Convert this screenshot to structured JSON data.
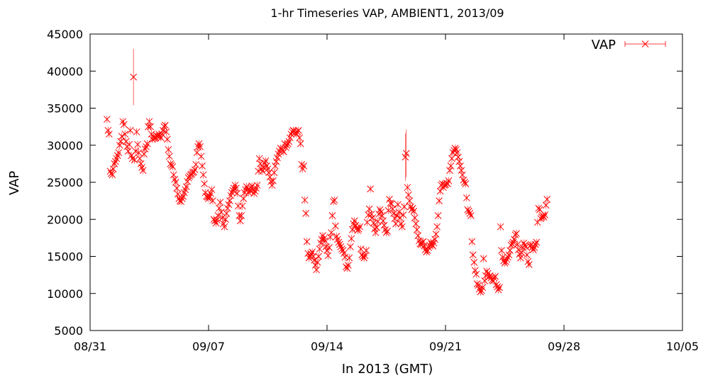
{
  "chart_data": {
    "type": "scatter",
    "title": "1-hr Timeseries VAP, AMBIENT1, 2013/09",
    "xlabel": "In 2013 (GMT)",
    "ylabel": "VAP",
    "xlim": [
      "2013-08-31",
      "2013-10-05"
    ],
    "ylim": [
      5000,
      45000
    ],
    "x_ticks": [
      "08/31",
      "09/07",
      "09/14",
      "09/21",
      "09/28",
      "10/05"
    ],
    "y_ticks": [
      5000,
      10000,
      15000,
      20000,
      25000,
      30000,
      35000,
      40000,
      45000
    ],
    "grid": false,
    "legend_position": "top-right",
    "series": [
      {
        "name": "VAP",
        "color": "#ff0000",
        "marker": "x",
        "error_bars": true,
        "x_start": "2013-09-01",
        "y": [
          33500,
          32000,
          31500,
          26500,
          26200,
          26000,
          26800,
          27500,
          27800,
          28200,
          28600,
          29000,
          30000,
          30500,
          31200,
          33200,
          32800,
          31500,
          30500,
          29800,
          29200,
          30100,
          32000,
          28600,
          28200,
          39200,
          28000,
          29200,
          31800,
          30100,
          29000,
          28200,
          27500,
          27000,
          26600,
          28800,
          29500,
          29800,
          30200,
          32500,
          33200,
          32500,
          31500,
          30800,
          31200,
          30900,
          31000,
          31300,
          31200,
          31500,
          31200,
          31000,
          31500,
          32000,
          32500,
          32700,
          31800,
          30800,
          29400,
          28500,
          27500,
          27300,
          27100,
          26000,
          25400,
          25000,
          24200,
          23400,
          22800,
          22500,
          22400,
          22800,
          23100,
          23600,
          24000,
          24400,
          25100,
          25600,
          25800,
          26000,
          26100,
          26300,
          26400,
          26700,
          27400,
          29000,
          29800,
          30200,
          29800,
          28500,
          27200,
          26000,
          24800,
          23600,
          23100,
          23000,
          22800,
          23100,
          23500,
          24000,
          22500,
          20000,
          19800,
          19500,
          19900,
          20500,
          21500,
          22300,
          21000,
          20200,
          19400,
          19000,
          20000,
          20800,
          21500,
          22000,
          22500,
          23200,
          23600,
          23900,
          24200,
          24600,
          24200,
          23500,
          21800,
          20500,
          19800,
          20500,
          21800,
          22800,
          23600,
          24000,
          24400,
          24000,
          23600,
          23900,
          24300,
          24500,
          24000,
          23500,
          23800,
          24200,
          24600,
          26500,
          28200,
          27500,
          26800,
          26500,
          27000,
          27600,
          27900,
          27200,
          26800,
          26300,
          25700,
          25100,
          24600,
          25200,
          26300,
          27200,
          27800,
          28300,
          28800,
          29200,
          29600,
          29500,
          29300,
          29100,
          30200,
          29700,
          30000,
          30200,
          30500,
          31000,
          31500,
          31800,
          32000,
          31900,
          31700,
          31500,
          31800,
          32000,
          31000,
          30200,
          27400,
          26800,
          27200,
          22600,
          20800,
          17000,
          15400,
          14800,
          15000,
          15300,
          15600,
          15000,
          14500,
          13800,
          13200,
          14200,
          15000,
          16000,
          16800,
          17300,
          17800,
          17400,
          17100,
          16300,
          15800,
          15100,
          16200,
          17600,
          18200,
          20500,
          22400,
          22600,
          19100,
          17700,
          17300,
          16900,
          16600,
          16300,
          16000,
          15800,
          15400,
          14900,
          13600,
          13400,
          13800,
          14800,
          16300,
          17400,
          18600,
          19400,
          19800,
          19200,
          18800,
          18500,
          18700,
          19000,
          16000,
          15200,
          15000,
          14800,
          15100,
          15800,
          19600,
          20600,
          21400,
          24100,
          20700,
          20200,
          19500,
          18700,
          18200,
          18900,
          19700,
          20700,
          21300,
          21000,
          20500,
          19800,
          19200,
          18600,
          18200,
          18400,
          21200,
          22700,
          22200,
          22100,
          21400,
          20800,
          20100,
          19400,
          20500,
          22000,
          21000,
          20200,
          19400,
          19000,
          20600,
          21700,
          28400,
          28900,
          24300,
          23300,
          22500,
          21700,
          21300,
          21500,
          21100,
          20200,
          19400,
          18600,
          17800,
          17100,
          16700,
          16600,
          16900,
          17000,
          16400,
          15900,
          15600,
          15800,
          16200,
          16500,
          16900,
          16600,
          16400,
          16800,
          17300,
          18000,
          19000,
          20500,
          22500,
          23800,
          24600,
          24800,
          24300,
          24600,
          24700,
          24900,
          24800,
          25200,
          26600,
          27200,
          28200,
          29000,
          29300,
          29600,
          29400,
          29000,
          28400,
          27800,
          27200,
          26600,
          26000,
          25300,
          25000,
          24800,
          22900,
          21300,
          21100,
          20800,
          20500,
          17000,
          15200,
          14200,
          13100,
          12600,
          11300,
          11100,
          10600,
          10200,
          10400,
          10800,
          14700,
          11700,
          12400,
          13000,
          12700,
          12200,
          12400,
          12100,
          11800,
          11700,
          12100,
          12300,
          11200,
          10900,
          10500,
          10800,
          19000,
          15800,
          14900,
          14400,
          14100,
          14300,
          14600,
          14900,
          15200,
          15800,
          16500,
          16700,
          16900,
          17300,
          17900,
          18100,
          16600,
          15900,
          15300,
          14800,
          15500,
          16200,
          16800,
          16500,
          16300,
          15200,
          14300,
          13900,
          16400,
          16600,
          16200,
          15900,
          16200,
          16600,
          16900,
          19600,
          21500,
          21300,
          20100,
          20300,
          20500,
          20300,
          20600,
          21900,
          22700
        ],
        "step_hours": 1.5
      }
    ]
  },
  "legend": {
    "label": "VAP"
  }
}
